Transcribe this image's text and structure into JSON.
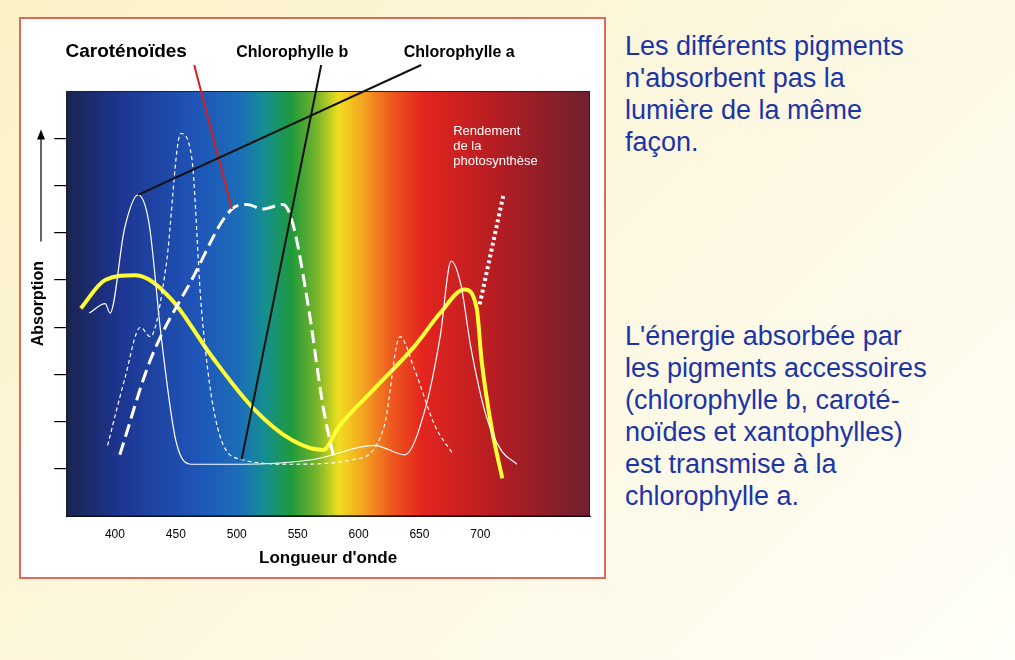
{
  "chart_data": {
    "type": "line",
    "x_label": "Longueur d'onde",
    "y_label": "Absorption",
    "xlim": [
      360,
      790
    ],
    "xticks": [
      400,
      450,
      500,
      550,
      600,
      650,
      700
    ],
    "ylim": [
      0,
      9
    ],
    "yticks": [
      1,
      2,
      3,
      4,
      5,
      6,
      7,
      8
    ],
    "tick_labels": "x",
    "grid": false,
    "series": [
      {
        "name": "Caroténoïdes",
        "color": "#ffffff",
        "line_style": "dashed",
        "x": [
          404,
          429,
          463,
          496,
          509,
          521,
          538,
          546,
          559,
          571,
          580
        ],
        "values": [
          1.3,
          3.3,
          5.0,
          6.5,
          6.6,
          6.5,
          6.6,
          6.2,
          4.4,
          2.3,
          1.2
        ]
      },
      {
        "name": "Chlorophylle b",
        "color": "#ffffff",
        "line_style": "dashed",
        "x": [
          394,
          408,
          421,
          429,
          442,
          454,
          463,
          471,
          484,
          504,
          546,
          596,
          621,
          634,
          646,
          663,
          678
        ],
        "values": [
          1.5,
          2.9,
          4.0,
          3.8,
          5.3,
          8.1,
          7.6,
          4.4,
          1.9,
          1.2,
          1.1,
          1.2,
          1.9,
          3.8,
          3.1,
          1.9,
          1.3
        ]
      },
      {
        "name": "Chlorophylle a",
        "color": "#ffffff",
        "line_style": "solid",
        "x": [
          379,
          392,
          396,
          408,
          419,
          428,
          438,
          450,
          463,
          504,
          563,
          613,
          638,
          655,
          667,
          676,
          684,
          692,
          705,
          717,
          730
        ],
        "values": [
          4.3,
          4.5,
          4.3,
          6.1,
          6.8,
          6.2,
          3.8,
          1.6,
          1.1,
          1.1,
          1.2,
          1.5,
          1.3,
          2.3,
          3.8,
          5.4,
          4.9,
          3.6,
          2.1,
          1.4,
          1.1
        ]
      },
      {
        "name": "Rendement de la photosynthèse",
        "color": "#ffff33",
        "line_style": "solid",
        "x": [
          372,
          392,
          417,
          446,
          479,
          513,
          546,
          571,
          584,
          613,
          646,
          667,
          687,
          697,
          701,
          709,
          718
        ],
        "values": [
          4.4,
          5.0,
          5.1,
          4.6,
          3.4,
          2.3,
          1.6,
          1.4,
          1.9,
          2.7,
          3.6,
          4.3,
          4.8,
          4.4,
          3.3,
          1.9,
          0.8
        ]
      }
    ]
  },
  "side_text": [
    [
      "Les différents pigments",
      "n'absorbent pas la",
      "lumière de la même",
      "façon."
    ],
    [
      "L'énergie absorbée par",
      "les pigments accessoires",
      "(chlorophylle b, caroté-",
      "noïdes et xantophylles)",
      "est transmise à la",
      "chlorophylle a."
    ]
  ]
}
